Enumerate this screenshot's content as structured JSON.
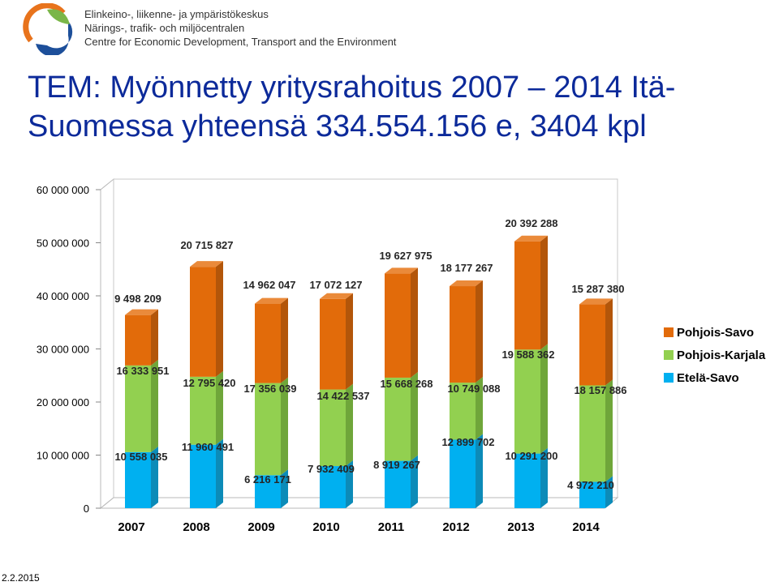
{
  "header": {
    "org_lines": [
      "Elinkeino-, liikenne- ja ympäristökeskus",
      "Närings-, trafik- och miljöcentralen",
      "Centre for Economic Development, Transport and the Environment"
    ]
  },
  "slide": {
    "title_line1": "TEM: Myönnetty yritysrahoitus 2007 – 2014 Itä-",
    "title_line2": "Suomessa yhteensä 334.554.156 e, 3404 kpl",
    "date": "2.2.2015"
  },
  "colors": {
    "etela_savo": "#00b0f0",
    "pohjois_karjala": "#92d050",
    "pohjois_savo": "#e26b0a"
  },
  "chart_data": {
    "type": "bar",
    "stacked": true,
    "three_d": true,
    "categories": [
      "2007",
      "2008",
      "2009",
      "2010",
      "2011",
      "2012",
      "2013",
      "2014"
    ],
    "series": [
      {
        "name": "Etelä-Savo",
        "values": [
          10558035,
          11960491,
          6216171,
          7932409,
          8919267,
          12899702,
          10291200,
          4972210
        ],
        "labels": [
          "10 558 035",
          "11 960 491",
          "6 216 171",
          "7 932 409",
          "8 919 267",
          "12 899 702",
          "10 291 200",
          "4 972 210"
        ]
      },
      {
        "name": "Pohjois-Karjala",
        "values": [
          16333951,
          12795420,
          17356039,
          14422537,
          15668268,
          10749088,
          19588362,
          18157886
        ],
        "labels": [
          "16 333 951",
          "12 795 420",
          "17 356 039",
          "14 422 537",
          "15 668 268",
          "10 749 088",
          "19 588 362",
          "18 157 886"
        ]
      },
      {
        "name": "Pohjois-Savo",
        "values": [
          9498209,
          20715827,
          14962047,
          17072127,
          19627975,
          18177267,
          20392288,
          15287380
        ],
        "labels": [
          "9 498 209",
          "20 715 827",
          "14 962 047",
          "17 072 127",
          "19 627 975",
          "18 177 267",
          "20 392 288",
          "15 287 380"
        ]
      }
    ],
    "y_ticks": [
      0,
      10000000,
      20000000,
      30000000,
      40000000,
      50000000,
      60000000
    ],
    "y_tick_labels": [
      "0",
      "10 000 000",
      "20 000 000",
      "30 000 000",
      "40 000 000",
      "50 000 000",
      "60 000 000"
    ],
    "ylim": [
      0,
      60000000
    ],
    "grid": false,
    "legend_position": "right"
  }
}
